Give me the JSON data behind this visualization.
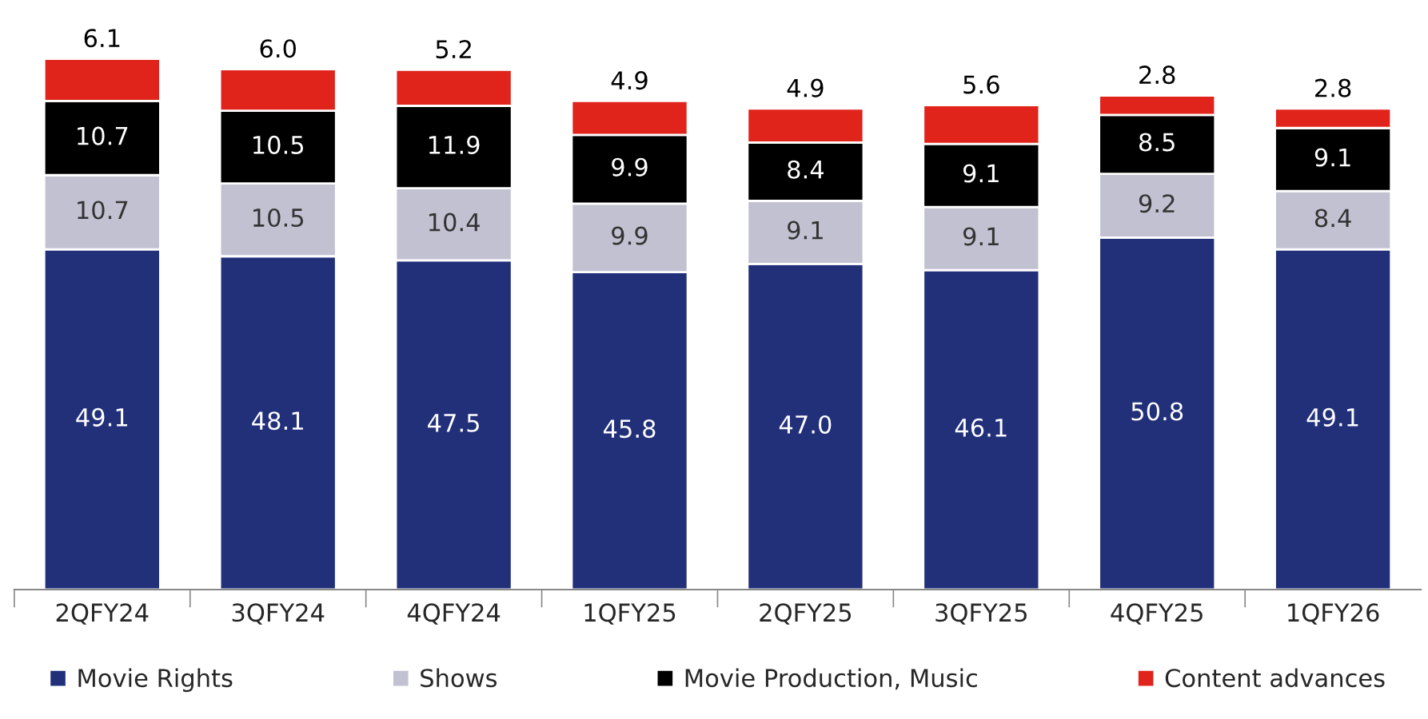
{
  "chart_data": {
    "type": "bar",
    "stacked": true,
    "legend": "bottom",
    "grid": false,
    "categories": [
      "2QFY24",
      "3QFY24",
      "4QFY24",
      "1QFY25",
      "2QFY25",
      "3QFY25",
      "4QFY25",
      "1QFY26"
    ],
    "series": [
      {
        "name": "Movie Rights",
        "color": "#22307a",
        "values": [
          49.1,
          48.1,
          47.5,
          45.8,
          47.0,
          46.1,
          50.8,
          49.1
        ],
        "value_labels": [
          "49.1",
          "48.1",
          "47.5",
          "45.8",
          "47.0",
          "46.1",
          "50.8",
          "49.1"
        ]
      },
      {
        "name": "Shows",
        "color": "#c1c1d1",
        "values": [
          10.7,
          10.5,
          10.4,
          9.9,
          9.1,
          9.1,
          9.2,
          8.4
        ],
        "value_labels": [
          "10.7",
          "10.5",
          "10.4",
          "9.9",
          "9.1",
          "9.1",
          "9.2",
          "8.4"
        ]
      },
      {
        "name": "Movie Production, Music",
        "color": "#000000",
        "values": [
          10.7,
          10.5,
          11.9,
          9.9,
          8.4,
          9.1,
          8.5,
          9.1
        ],
        "value_labels": [
          "10.7",
          "10.5",
          "11.9",
          "9.9",
          "8.4",
          "9.1",
          "8.5",
          "9.1"
        ]
      },
      {
        "name": "Content advances",
        "color": "#e0231b",
        "values": [
          6.1,
          6.0,
          5.2,
          4.9,
          4.9,
          5.6,
          2.8,
          2.8
        ],
        "value_labels": [
          "6.1",
          "6.0",
          "5.2",
          "4.9",
          "4.9",
          "5.6",
          "2.8",
          "2.8"
        ]
      }
    ]
  }
}
